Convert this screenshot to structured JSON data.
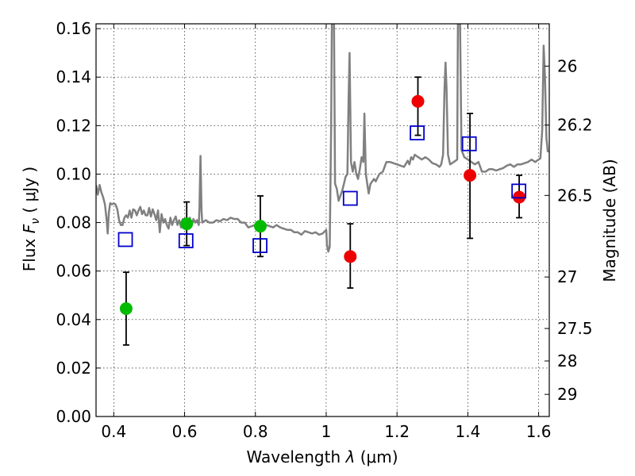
{
  "chart_data": {
    "type": "scatter",
    "title": "",
    "xlabel_main": "Wavelength",
    "xlabel_sym": "λ",
    "xlabel_unit": "(μm)",
    "ylabel_main": "Flux",
    "ylabel_sym": "F",
    "ylabel_sub": "ν",
    "ylabel_open": "(",
    "ylabel_unit": "μJy",
    "ylabel_close": ")",
    "y2label": "Magnitude (AB)",
    "xlim": [
      0.35,
      1.63
    ],
    "ylim": [
      0.0,
      0.162
    ],
    "grid": true,
    "x_ticks": [
      {
        "value": 0.4,
        "label": "0.4"
      },
      {
        "value": 0.6,
        "label": "0.6"
      },
      {
        "value": 0.8,
        "label": "0.8"
      },
      {
        "value": 1.0,
        "label": "1"
      },
      {
        "value": 1.2,
        "label": "1.2"
      },
      {
        "value": 1.4,
        "label": "1.4"
      },
      {
        "value": 1.6,
        "label": "1.6"
      }
    ],
    "y_ticks": [
      {
        "value": 0.0,
        "label": "0.00"
      },
      {
        "value": 0.02,
        "label": "0.02"
      },
      {
        "value": 0.04,
        "label": "0.04"
      },
      {
        "value": 0.06,
        "label": "0.06"
      },
      {
        "value": 0.08,
        "label": "0.08"
      },
      {
        "value": 0.1,
        "label": "0.10"
      },
      {
        "value": 0.12,
        "label": "0.12"
      },
      {
        "value": 0.14,
        "label": "0.14"
      },
      {
        "value": 0.16,
        "label": "0.16"
      }
    ],
    "mag_ticks": [
      {
        "value": 26.0,
        "label": "26"
      },
      {
        "value": 26.2,
        "label": "26.2"
      },
      {
        "value": 26.5,
        "label": "26.5"
      },
      {
        "value": 27.0,
        "label": "27"
      },
      {
        "value": 27.5,
        "label": "27.5"
      },
      {
        "value": 28.0,
        "label": "28"
      },
      {
        "value": 29.0,
        "label": "29"
      }
    ],
    "series": [
      {
        "kind": "line",
        "color": "#808080",
        "points": [
          [
            0.35,
            0.0955
          ],
          [
            0.355,
            0.0915
          ],
          [
            0.36,
            0.0955
          ],
          [
            0.365,
            0.0925
          ],
          [
            0.37,
            0.0905
          ],
          [
            0.375,
            0.0875
          ],
          [
            0.38,
            0.081
          ],
          [
            0.383,
            0.0755
          ],
          [
            0.386,
            0.084
          ],
          [
            0.39,
            0.088
          ],
          [
            0.395,
            0.0875
          ],
          [
            0.4,
            0.088
          ],
          [
            0.405,
            0.0875
          ],
          [
            0.41,
            0.0855
          ],
          [
            0.415,
            0.081
          ],
          [
            0.42,
            0.079
          ],
          [
            0.425,
            0.079
          ],
          [
            0.43,
            0.082
          ],
          [
            0.435,
            0.083
          ],
          [
            0.44,
            0.082
          ],
          [
            0.445,
            0.085
          ],
          [
            0.45,
            0.082
          ],
          [
            0.455,
            0.0855
          ],
          [
            0.46,
            0.085
          ],
          [
            0.465,
            0.083
          ],
          [
            0.47,
            0.085
          ],
          [
            0.475,
            0.0865
          ],
          [
            0.48,
            0.0835
          ],
          [
            0.485,
            0.085
          ],
          [
            0.49,
            0.083
          ],
          [
            0.495,
            0.083
          ],
          [
            0.5,
            0.086
          ],
          [
            0.505,
            0.0825
          ],
          [
            0.51,
            0.0855
          ],
          [
            0.515,
            0.0835
          ],
          [
            0.52,
            0.081
          ],
          [
            0.525,
            0.085
          ],
          [
            0.53,
            0.076
          ],
          [
            0.535,
            0.0835
          ],
          [
            0.54,
            0.08
          ],
          [
            0.545,
            0.0815
          ],
          [
            0.55,
            0.079
          ],
          [
            0.555,
            0.0775
          ],
          [
            0.56,
            0.082
          ],
          [
            0.565,
            0.079
          ],
          [
            0.57,
            0.081
          ],
          [
            0.575,
            0.0825
          ],
          [
            0.58,
            0.079
          ],
          [
            0.585,
            0.081
          ],
          [
            0.59,
            0.078
          ],
          [
            0.595,
            0.0815
          ],
          [
            0.6,
            0.079
          ],
          [
            0.605,
            0.0805
          ],
          [
            0.61,
            0.079
          ],
          [
            0.615,
            0.082
          ],
          [
            0.62,
            0.079
          ],
          [
            0.625,
            0.0815
          ],
          [
            0.63,
            0.08
          ],
          [
            0.635,
            0.081
          ],
          [
            0.64,
            0.079
          ],
          [
            0.642,
            0.086
          ],
          [
            0.645,
            0.1075
          ],
          [
            0.648,
            0.085
          ],
          [
            0.65,
            0.08
          ],
          [
            0.655,
            0.0805
          ],
          [
            0.66,
            0.081
          ],
          [
            0.67,
            0.08
          ],
          [
            0.68,
            0.08
          ],
          [
            0.69,
            0.081
          ],
          [
            0.7,
            0.0805
          ],
          [
            0.71,
            0.0815
          ],
          [
            0.72,
            0.081
          ],
          [
            0.73,
            0.082
          ],
          [
            0.74,
            0.0815
          ],
          [
            0.75,
            0.0815
          ],
          [
            0.76,
            0.08
          ],
          [
            0.77,
            0.08
          ],
          [
            0.78,
            0.078
          ],
          [
            0.79,
            0.0785
          ],
          [
            0.8,
            0.079
          ],
          [
            0.81,
            0.079
          ],
          [
            0.82,
            0.078
          ],
          [
            0.83,
            0.079
          ],
          [
            0.84,
            0.0785
          ],
          [
            0.85,
            0.078
          ],
          [
            0.86,
            0.079
          ],
          [
            0.87,
            0.078
          ],
          [
            0.88,
            0.0775
          ],
          [
            0.89,
            0.077
          ],
          [
            0.9,
            0.077
          ],
          [
            0.91,
            0.076
          ],
          [
            0.92,
            0.076
          ],
          [
            0.93,
            0.075
          ],
          [
            0.94,
            0.0765
          ],
          [
            0.95,
            0.076
          ],
          [
            0.96,
            0.0755
          ],
          [
            0.97,
            0.076
          ],
          [
            0.98,
            0.075
          ],
          [
            0.99,
            0.0755
          ],
          [
            1.0,
            0.077
          ],
          [
            1.002,
            0.071
          ],
          [
            1.006,
            0.068
          ],
          [
            1.01,
            0.07
          ],
          [
            1.014,
            0.12
          ],
          [
            1.016,
            0.162
          ],
          [
            1.022,
            0.162
          ],
          [
            1.025,
            0.096
          ],
          [
            1.03,
            0.094
          ],
          [
            1.035,
            0.089
          ],
          [
            1.04,
            0.091
          ],
          [
            1.045,
            0.093
          ],
          [
            1.05,
            0.096
          ],
          [
            1.055,
            0.099
          ],
          [
            1.06,
            0.1
          ],
          [
            1.063,
            0.13
          ],
          [
            1.066,
            0.15
          ],
          [
            1.07,
            0.105
          ],
          [
            1.075,
            0.101
          ],
          [
            1.08,
            0.105
          ],
          [
            1.085,
            0.1
          ],
          [
            1.09,
            0.098
          ],
          [
            1.095,
            0.102
          ],
          [
            1.1,
            0.107
          ],
          [
            1.105,
            0.105
          ],
          [
            1.108,
            0.125
          ],
          [
            1.112,
            0.1
          ],
          [
            1.12,
            0.092
          ],
          [
            1.125,
            0.096
          ],
          [
            1.13,
            0.097
          ],
          [
            1.135,
            0.098
          ],
          [
            1.14,
            0.097
          ],
          [
            1.145,
            0.0985
          ],
          [
            1.15,
            0.1
          ],
          [
            1.16,
            0.101
          ],
          [
            1.17,
            0.105
          ],
          [
            1.18,
            0.105
          ],
          [
            1.19,
            0.1045
          ],
          [
            1.2,
            0.104
          ],
          [
            1.21,
            0.1035
          ],
          [
            1.22,
            0.103
          ],
          [
            1.23,
            0.1055
          ],
          [
            1.235,
            0.104
          ],
          [
            1.24,
            0.107
          ],
          [
            1.245,
            0.106
          ],
          [
            1.25,
            0.108
          ],
          [
            1.26,
            0.107
          ],
          [
            1.27,
            0.106
          ],
          [
            1.28,
            0.107
          ],
          [
            1.29,
            0.106
          ],
          [
            1.3,
            0.1045
          ],
          [
            1.31,
            0.104
          ],
          [
            1.32,
            0.103
          ],
          [
            1.325,
            0.104
          ],
          [
            1.33,
            0.108
          ],
          [
            1.334,
            0.135
          ],
          [
            1.337,
            0.146
          ],
          [
            1.34,
            0.135
          ],
          [
            1.344,
            0.108
          ],
          [
            1.35,
            0.104
          ],
          [
            1.36,
            0.105
          ],
          [
            1.37,
            0.106
          ],
          [
            1.372,
            0.162
          ],
          [
            1.378,
            0.162
          ],
          [
            1.382,
            0.11
          ],
          [
            1.39,
            0.107
          ],
          [
            1.4,
            0.106
          ],
          [
            1.41,
            0.105
          ],
          [
            1.42,
            0.104
          ],
          [
            1.43,
            0.105
          ],
          [
            1.44,
            0.101
          ],
          [
            1.45,
            0.101
          ],
          [
            1.46,
            0.102
          ],
          [
            1.47,
            0.102
          ],
          [
            1.48,
            0.1015
          ],
          [
            1.49,
            0.102
          ],
          [
            1.5,
            0.1025
          ],
          [
            1.51,
            0.1035
          ],
          [
            1.52,
            0.104
          ],
          [
            1.53,
            0.103
          ],
          [
            1.54,
            0.104
          ],
          [
            1.55,
            0.104
          ],
          [
            1.56,
            0.1045
          ],
          [
            1.57,
            0.105
          ],
          [
            1.58,
            0.106
          ],
          [
            1.59,
            0.105
          ],
          [
            1.6,
            0.106
          ],
          [
            1.605,
            0.1065
          ],
          [
            1.61,
            0.118
          ],
          [
            1.614,
            0.153
          ],
          [
            1.618,
            0.14
          ],
          [
            1.622,
            0.115
          ],
          [
            1.626,
            0.109
          ]
        ]
      },
      {
        "kind": "scatter",
        "marker": "circle",
        "color": "#00bb00",
        "points": [
          {
            "x": 0.435,
            "y": 0.0445,
            "err_low": 0.0295,
            "err_high": 0.0595
          },
          {
            "x": 0.606,
            "y": 0.0795,
            "err_low": 0.0705,
            "err_high": 0.0885
          },
          {
            "x": 0.814,
            "y": 0.0785,
            "err_low": 0.066,
            "err_high": 0.091
          }
        ]
      },
      {
        "kind": "scatter",
        "marker": "circle",
        "color": "#ee0000",
        "points": [
          {
            "x": 1.068,
            "y": 0.066,
            "err_low": 0.053,
            "err_high": 0.0795
          },
          {
            "x": 1.259,
            "y": 0.13,
            "err_low": 0.116,
            "err_high": 0.14
          },
          {
            "x": 1.406,
            "y": 0.0995,
            "err_low": 0.0735,
            "err_high": 0.125
          },
          {
            "x": 1.545,
            "y": 0.0905,
            "err_low": 0.082,
            "err_high": 0.0995
          }
        ]
      },
      {
        "kind": "scatter",
        "marker": "open-square",
        "color": "#0000cc",
        "points": [
          {
            "x": 0.433,
            "y": 0.073
          },
          {
            "x": 0.604,
            "y": 0.0725
          },
          {
            "x": 0.813,
            "y": 0.0705
          },
          {
            "x": 1.068,
            "y": 0.09
          },
          {
            "x": 1.257,
            "y": 0.117
          },
          {
            "x": 1.404,
            "y": 0.1125
          },
          {
            "x": 1.544,
            "y": 0.093
          }
        ]
      }
    ]
  }
}
